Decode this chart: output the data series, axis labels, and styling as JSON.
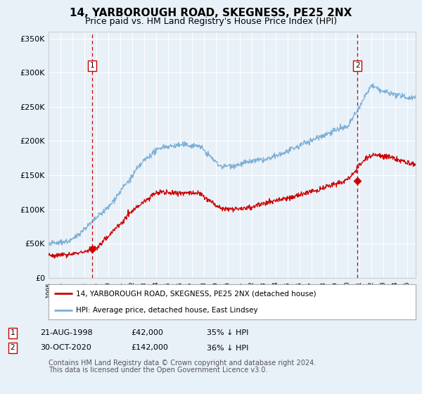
{
  "title": "14, YARBOROUGH ROAD, SKEGNESS, PE25 2NX",
  "subtitle": "Price paid vs. HM Land Registry's House Price Index (HPI)",
  "title_fontsize": 11,
  "subtitle_fontsize": 9,
  "bg_color": "#e8f0f8",
  "plot_bg_color": "#e8f0f8",
  "grid_color": "#ffffff",
  "hpi_color": "#7ab0d8",
  "price_color": "#cc0000",
  "marker_color": "#cc0000",
  "vline_color": "#cc0000",
  "legend_border_color": "#aaaaaa",
  "ylim": [
    0,
    360000
  ],
  "yticks": [
    0,
    50000,
    100000,
    150000,
    200000,
    250000,
    300000,
    350000
  ],
  "ytick_labels": [
    "£0",
    "£50K",
    "£100K",
    "£150K",
    "£200K",
    "£250K",
    "£300K",
    "£350K"
  ],
  "xlim_start": 1995.0,
  "xlim_end": 2025.7,
  "sale1_x": 1998.64,
  "sale1_y": 42000,
  "sale1_label": "1",
  "sale2_x": 2020.83,
  "sale2_y": 142000,
  "sale2_label": "2",
  "legend_line1": "14, YARBOROUGH ROAD, SKEGNESS, PE25 2NX (detached house)",
  "legend_line2": "HPI: Average price, detached house, East Lindsey",
  "table_row1_num": "1",
  "table_row1_date": "21-AUG-1998",
  "table_row1_price": "£42,000",
  "table_row1_pct": "35% ↓ HPI",
  "table_row2_num": "2",
  "table_row2_date": "30-OCT-2020",
  "table_row2_price": "£142,000",
  "table_row2_pct": "36% ↓ HPI",
  "footnote_line1": "Contains HM Land Registry data © Crown copyright and database right 2024.",
  "footnote_line2": "This data is licensed under the Open Government Licence v3.0.",
  "footnote_fontsize": 7,
  "box_edge_color": "#cc0000"
}
